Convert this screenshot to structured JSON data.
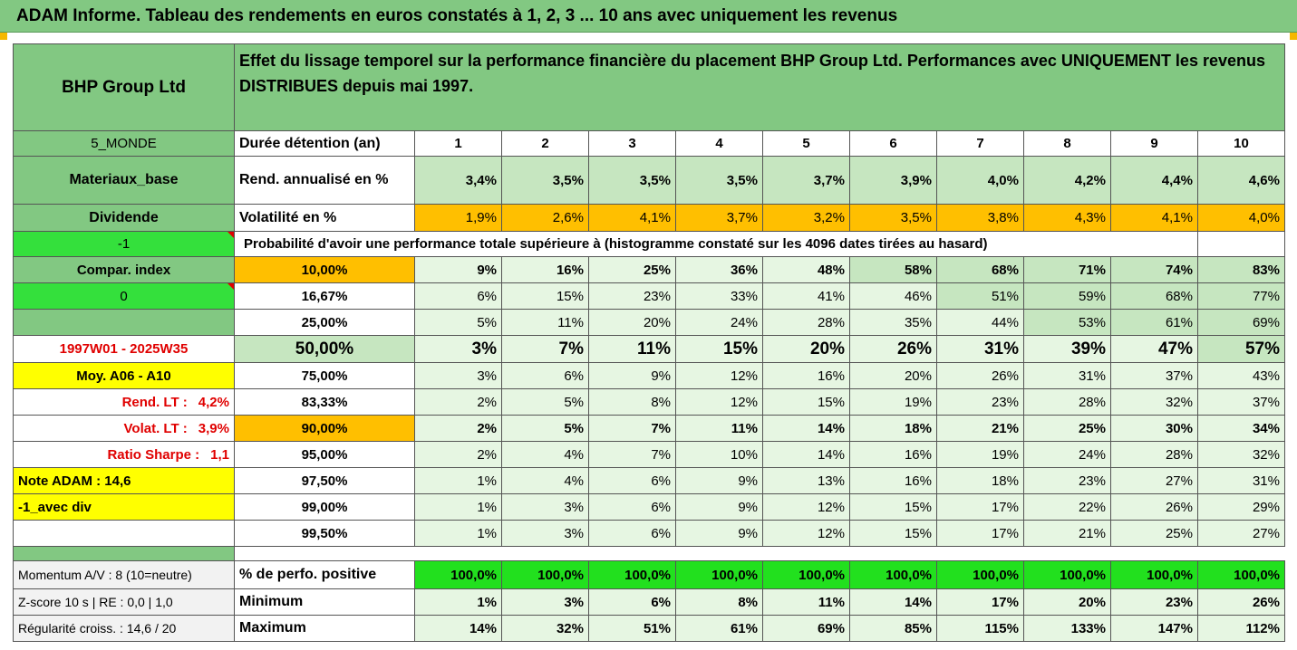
{
  "title": "ADAM Informe. Tableau des rendements en euros constatés à 1, 2, 3 ... 10 ans avec uniquement les revenus",
  "header": {
    "company": "BHP Group Ltd",
    "description": "Effet du lissage temporel sur la performance financière du placement BHP Group Ltd. Performances avec UNIQUEMENT les revenus DISTRIBUES depuis mai 1997."
  },
  "left": {
    "zone": "5_MONDE",
    "sector": "Materiaux_base",
    "type": "Dividende",
    "code": "-1",
    "compar": "Compar. index",
    "compar_value": "0",
    "period": "1997W01 - 2025W35",
    "moy": "Moy. A06 - A10",
    "rend_label": "Rend. LT :",
    "rend_value": "4,2%",
    "volat_label": "Volat. LT :",
    "volat_value": "3,9%",
    "sharpe_label": "Ratio Sharpe :",
    "sharpe_value": "1,1",
    "note": "Note ADAM : 14,6",
    "avec": "-1_avec div"
  },
  "durations": {
    "label": "Durée détention (an)",
    "values": [
      "1",
      "2",
      "3",
      "4",
      "5",
      "6",
      "7",
      "8",
      "9",
      "10"
    ]
  },
  "rend": {
    "label": "Rend. annualisé en %",
    "values": [
      "3,4%",
      "3,5%",
      "3,5%",
      "3,5%",
      "3,7%",
      "3,9%",
      "4,0%",
      "4,2%",
      "4,4%",
      "4,6%"
    ]
  },
  "volat": {
    "label": "Volatilité en %",
    "values": [
      "1,9%",
      "2,6%",
      "4,1%",
      "3,7%",
      "3,2%",
      "3,5%",
      "3,8%",
      "4,3%",
      "4,1%",
      "4,0%"
    ]
  },
  "probability_title": "Probabilité d'avoir une performance totale supérieure à (histogramme constaté sur les 4096 dates tirées au hasard)",
  "prob_rows": [
    {
      "threshold": "10,00%",
      "values": [
        "9%",
        "16%",
        "25%",
        "36%",
        "48%",
        "58%",
        "68%",
        "71%",
        "74%",
        "83%"
      ]
    },
    {
      "threshold": "16,67%",
      "values": [
        "6%",
        "15%",
        "23%",
        "33%",
        "41%",
        "46%",
        "51%",
        "59%",
        "68%",
        "77%"
      ]
    },
    {
      "threshold": "25,00%",
      "values": [
        "5%",
        "11%",
        "20%",
        "24%",
        "28%",
        "35%",
        "44%",
        "53%",
        "61%",
        "69%"
      ]
    },
    {
      "threshold": "50,00%",
      "values": [
        "3%",
        "7%",
        "11%",
        "15%",
        "20%",
        "26%",
        "31%",
        "39%",
        "47%",
        "57%"
      ]
    },
    {
      "threshold": "75,00%",
      "values": [
        "3%",
        "6%",
        "9%",
        "12%",
        "16%",
        "20%",
        "26%",
        "31%",
        "37%",
        "43%"
      ]
    },
    {
      "threshold": "83,33%",
      "values": [
        "2%",
        "5%",
        "8%",
        "12%",
        "15%",
        "19%",
        "23%",
        "28%",
        "32%",
        "37%"
      ]
    },
    {
      "threshold": "90,00%",
      "values": [
        "2%",
        "5%",
        "7%",
        "11%",
        "14%",
        "18%",
        "21%",
        "25%",
        "30%",
        "34%"
      ]
    },
    {
      "threshold": "95,00%",
      "values": [
        "2%",
        "4%",
        "7%",
        "10%",
        "14%",
        "16%",
        "19%",
        "24%",
        "28%",
        "32%"
      ]
    },
    {
      "threshold": "97,50%",
      "values": [
        "1%",
        "4%",
        "6%",
        "9%",
        "13%",
        "16%",
        "18%",
        "23%",
        "27%",
        "31%"
      ]
    },
    {
      "threshold": "99,00%",
      "values": [
        "1%",
        "3%",
        "6%",
        "9%",
        "12%",
        "15%",
        "17%",
        "22%",
        "26%",
        "29%"
      ]
    },
    {
      "threshold": "99,50%",
      "values": [
        "1%",
        "3%",
        "6%",
        "9%",
        "12%",
        "15%",
        "17%",
        "21%",
        "25%",
        "27%"
      ]
    }
  ],
  "bottom": [
    {
      "left": "Momentum A/V : 8 (10=neutre)",
      "label": "% de perfo. positive",
      "values": [
        "100,0%",
        "100,0%",
        "100,0%",
        "100,0%",
        "100,0%",
        "100,0%",
        "100,0%",
        "100,0%",
        "100,0%",
        "100,0%"
      ]
    },
    {
      "left": "Z-score 10 s  |  RE : 0,0  |  1,0",
      "label": "Minimum",
      "values": [
        "1%",
        "3%",
        "6%",
        "8%",
        "11%",
        "14%",
        "17%",
        "20%",
        "23%",
        "26%"
      ]
    },
    {
      "left": "Régularité croiss. : 14,6 / 20",
      "label": "Maximum",
      "values": [
        "14%",
        "32%",
        "51%",
        "61%",
        "69%",
        "85%",
        "115%",
        "133%",
        "147%",
        "112%"
      ]
    }
  ],
  "colors": {
    "dark_green": "#82c882",
    "pale_green": "#c6e6c0",
    "light_green": "#e6f6e2",
    "orange": "#ffbf00",
    "yellow": "#ffff00",
    "bright_green": "#22e01e",
    "red_text": "#e00000"
  }
}
